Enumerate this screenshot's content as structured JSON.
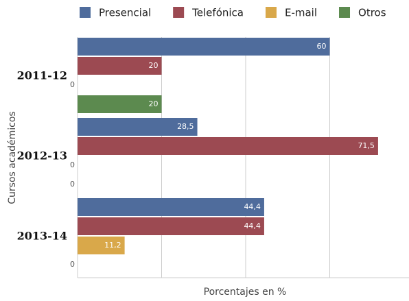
{
  "chart_data": {
    "type": "hbar",
    "categories": [
      "2011-12",
      "2012-13",
      "2013-14"
    ],
    "series": [
      {
        "name": "Presencial",
        "color": "#4f6c9c",
        "values": [
          60,
          28.5,
          44.4
        ],
        "value_labels": [
          "60",
          "28,5",
          "44,4"
        ]
      },
      {
        "name": "Telefónica",
        "color": "#9c4a52",
        "values": [
          20,
          71.5,
          44.4
        ],
        "value_labels": [
          "20",
          "71,5",
          "44,4"
        ]
      },
      {
        "name": "E-mail",
        "color": "#d9a84a",
        "values": [
          0,
          0,
          11.2
        ],
        "value_labels": [
          "0",
          "0",
          "11,2"
        ]
      },
      {
        "name": "Otros",
        "color": "#5c8a4f",
        "values": [
          20,
          0,
          0
        ],
        "value_labels": [
          "20",
          "0",
          "0"
        ]
      }
    ],
    "xlim": [
      0,
      80
    ],
    "xticks": [
      0,
      20,
      40,
      60,
      80
    ],
    "grid": true,
    "xlabel": "Porcentajes en %",
    "ylabel": "Cursos académicos",
    "legend": "top"
  }
}
